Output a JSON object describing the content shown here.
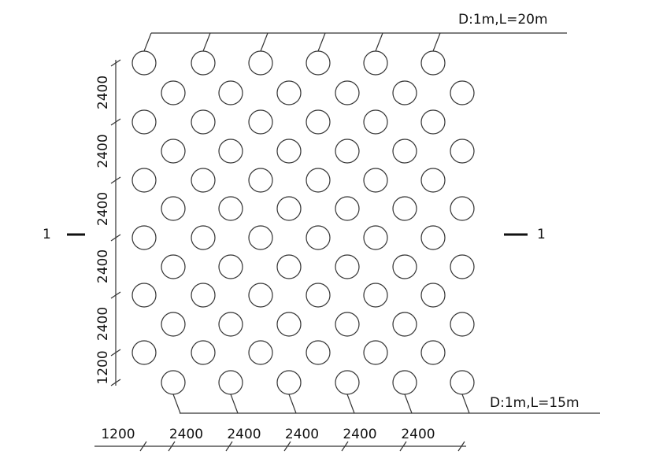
{
  "top_pipe": {
    "label": "D:1m,L=20m"
  },
  "bottom_pipe": {
    "label": "D:1m,L=15m"
  },
  "section_marks": [
    "1",
    "1"
  ],
  "vertical_dimensions": [
    "2400",
    "2400",
    "2400",
    "2400",
    "2400",
    "1200"
  ],
  "horizontal_dimensions": [
    "1200",
    "2400",
    "2400",
    "2400",
    "2400",
    "2400"
  ]
}
